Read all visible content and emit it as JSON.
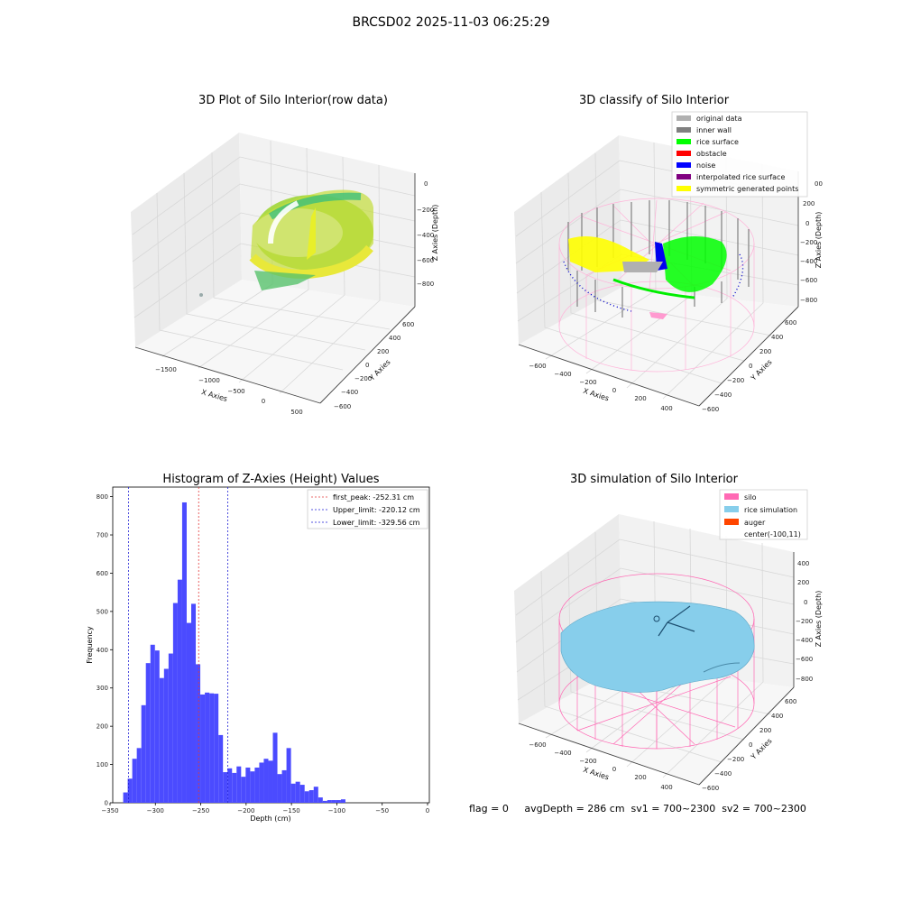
{
  "figure": {
    "suptitle": "BRCSD02 2025-11-03 06:25:29",
    "footer": "flag = 0     avgDepth = 286 cm  sv1 = 700~2300  sv2 = 700~2300"
  },
  "colors": {
    "histogram_bar": "#4b4bff",
    "first_peak_line": "#e23b3b",
    "limit_lines": "#1f1fd6",
    "silo": "#ff69b4",
    "rice_simulation": "#87ceeb",
    "auger": "#ff4500",
    "original_data": "#b0b0b0",
    "inner_wall": "#808080",
    "rice_surface": "#00ff00",
    "obstacle": "#ff0000",
    "noise": "#0000ff",
    "interpolated_rice_surface": "#800080",
    "symmetric_generated_points": "#ffff00"
  },
  "chart_data": [
    {
      "type": "scatter",
      "title": "3D Plot of Silo Interior(row data)",
      "xlabel": "X Axies",
      "ylabel": "Y Axies",
      "zlabel": "Z Axies (Depth)",
      "x_ticks": [
        "−1500",
        "−1000",
        "−500",
        "0",
        "500"
      ],
      "y_ticks": [
        "−600",
        "−400",
        "−200",
        "0",
        "200",
        "400",
        "600"
      ],
      "z_ticks": [
        "0",
        "−200",
        "−400",
        "−600",
        "−800"
      ]
    },
    {
      "type": "scatter",
      "title": "3D classify of Silo Interior",
      "xlabel": "X Axies",
      "ylabel": "Y Axies",
      "zlabel": "Z Axies (Depth)",
      "x_ticks": [
        "−600",
        "−400",
        "−200",
        "0",
        "200",
        "400"
      ],
      "y_ticks": [
        "−600",
        "−400",
        "−200",
        "0",
        "200",
        "400",
        "600"
      ],
      "z_ticks": [
        "200",
        "0",
        "−200",
        "−400",
        "−600",
        "−800"
      ],
      "z_top_partial": "00",
      "legend": [
        {
          "label": "original data",
          "color": "#b0b0b0"
        },
        {
          "label": "inner wall",
          "color": "#808080"
        },
        {
          "label": "rice surface",
          "color": "#00ff00"
        },
        {
          "label": "obstacle",
          "color": "#ff0000"
        },
        {
          "label": "noise",
          "color": "#0000ff"
        },
        {
          "label": "interpolated rice surface",
          "color": "#800080"
        },
        {
          "label": "symmetric generated points",
          "color": "#ffff00"
        }
      ]
    },
    {
      "type": "bar",
      "title": "Histogram of Z-Axies (Height) Values",
      "xlabel": "Depth (cm)",
      "ylabel": "Frequency",
      "xlim": [
        -347,
        2
      ],
      "ylim": [
        0,
        825
      ],
      "x_ticks": [
        -350,
        -300,
        -250,
        -200,
        -150,
        -100,
        -50,
        0
      ],
      "y_ticks": [
        0,
        100,
        200,
        300,
        400,
        500,
        600,
        700,
        800
      ],
      "bin_start": -335.5,
      "bin_width": 5.0,
      "values": [
        27,
        63,
        115,
        143,
        255,
        365,
        413,
        398,
        326,
        350,
        390,
        522,
        583,
        785,
        470,
        520,
        362,
        283,
        288,
        286,
        285,
        177,
        80,
        90,
        78,
        95,
        68,
        92,
        82,
        92,
        105,
        115,
        110,
        183,
        75,
        85,
        143,
        50,
        55,
        47,
        30,
        33,
        42,
        14,
        5,
        7,
        7,
        7,
        9
      ],
      "vlines": [
        {
          "label": "first_peak: -252.31 cm",
          "x": -252.31,
          "color": "#e23b3b"
        },
        {
          "label": "Upper_limit: -220.12 cm",
          "x": -220.12,
          "color": "#1f1fd6"
        },
        {
          "label": "Lower_limit: -329.56 cm",
          "x": -329.56,
          "color": "#1f1fd6"
        }
      ]
    },
    {
      "type": "scatter",
      "title": "3D simulation of Silo Interior",
      "xlabel": "X Axies",
      "ylabel": "Y Axies",
      "zlabel": "Z Axies (Depth)",
      "x_ticks": [
        "−600",
        "−400",
        "−200",
        "0",
        "200",
        "400"
      ],
      "y_ticks": [
        "−600",
        "−400",
        "−200",
        "0",
        "200",
        "400",
        "600"
      ],
      "z_ticks": [
        "400",
        "200",
        "0",
        "−200",
        "−400",
        "−600",
        "−800"
      ],
      "legend": [
        {
          "label": "silo",
          "color": "#ff69b4"
        },
        {
          "label": "rice simulation",
          "color": "#87ceeb"
        },
        {
          "label": "auger",
          "color": "#ff4500"
        },
        {
          "label": "center(-100,11)",
          "color": "none"
        }
      ]
    }
  ]
}
